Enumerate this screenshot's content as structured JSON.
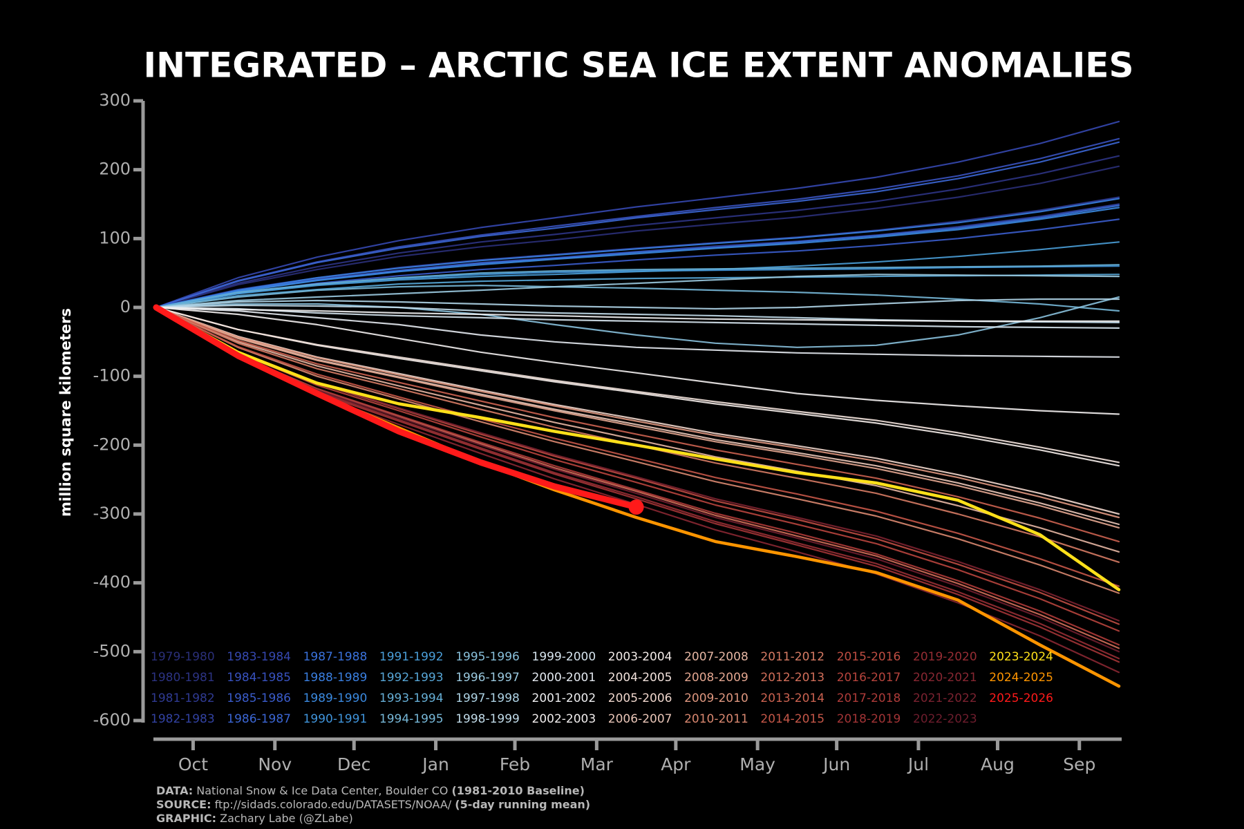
{
  "chart_data": {
    "type": "line",
    "title": "INTEGRATED – ARCTIC SEA ICE EXTENT ANOMALIES",
    "ylabel": "million square kilometers",
    "x": [
      0,
      31,
      61,
      92,
      123,
      151,
      182,
      212,
      243,
      273,
      304,
      335,
      365
    ],
    "xlim": [
      0,
      365
    ],
    "xticks": [
      {
        "value": 14,
        "label": "Oct"
      },
      {
        "value": 45,
        "label": "Nov"
      },
      {
        "value": 75,
        "label": "Dec"
      },
      {
        "value": 106,
        "label": "Jan"
      },
      {
        "value": 136,
        "label": "Feb"
      },
      {
        "value": 167,
        "label": "Mar"
      },
      {
        "value": 197,
        "label": "Apr"
      },
      {
        "value": 228,
        "label": "May"
      },
      {
        "value": 258,
        "label": "Jun"
      },
      {
        "value": 289,
        "label": "Jul"
      },
      {
        "value": 319,
        "label": "Aug"
      },
      {
        "value": 350,
        "label": "Sep"
      }
    ],
    "ylim": [
      -600,
      300
    ],
    "yticks": [
      -600,
      -500,
      -400,
      -300,
      -200,
      -100,
      0,
      100,
      200,
      300
    ],
    "series": [
      {
        "name": "1979-1980",
        "color": "#2a2f78",
        "values": [
          0,
          33,
          55,
          74,
          88,
          98,
          111,
          121,
          131,
          144,
          160,
          180,
          205
        ]
      },
      {
        "name": "1980-1981",
        "color": "#2c3383",
        "values": [
          0,
          35,
          59,
          79,
          95,
          106,
          119,
          130,
          141,
          154,
          172,
          194,
          220
        ]
      },
      {
        "name": "1981-1982",
        "color": "#2f3a92",
        "values": [
          0,
          26,
          43,
          58,
          69,
          77,
          86,
          94,
          102,
          112,
          125,
          141,
          160
        ]
      },
      {
        "name": "1982-1983",
        "color": "#3242a2",
        "values": [
          0,
          24,
          41,
          54,
          65,
          72,
          81,
          89,
          96,
          105,
          117,
          132,
          150
        ]
      },
      {
        "name": "1983-1984",
        "color": "#3548b0",
        "values": [
          0,
          43,
          73,
          97,
          116,
          130,
          146,
          159,
          173,
          189,
          211,
          238,
          270
        ]
      },
      {
        "name": "1984-1985",
        "color": "#3852bf",
        "values": [
          0,
          39,
          66,
          88,
          105,
          118,
          132,
          145,
          157,
          172,
          191,
          216,
          245
        ]
      },
      {
        "name": "1985-1986",
        "color": "#3a5ccb",
        "values": [
          0,
          20,
          35,
          46,
          55,
          61,
          69,
          76,
          82,
          90,
          100,
          113,
          128
        ]
      },
      {
        "name": "1986-1987",
        "color": "#3b66d4",
        "values": [
          0,
          38,
          65,
          86,
          103,
          115,
          130,
          142,
          154,
          168,
          187,
          211,
          240
        ]
      },
      {
        "name": "1987-1988",
        "color": "#3a72dc",
        "values": [
          0,
          24,
          40,
          53,
          64,
          71,
          80,
          87,
          95,
          104,
          115,
          130,
          148
        ]
      },
      {
        "name": "1988-1989",
        "color": "#3a7fe0",
        "values": [
          0,
          25,
          43,
          57,
          68,
          76,
          85,
          93,
          101,
          111,
          123,
          139,
          158
        ]
      },
      {
        "name": "1989-1990",
        "color": "#3b8ae0",
        "values": [
          0,
          23,
          39,
          52,
          62,
          70,
          78,
          86,
          93,
          102,
          113,
          128,
          145
        ]
      },
      {
        "name": "1990-1991",
        "color": "#4095dc",
        "values": [
          0,
          21,
          33,
          42,
          48,
          51,
          53,
          54,
          55,
          56,
          58,
          59,
          60
        ]
      },
      {
        "name": "1991-1992",
        "color": "#4a9ed8",
        "values": [
          0,
          20,
          32,
          40,
          45,
          48,
          52,
          55,
          60,
          66,
          74,
          84,
          95
        ]
      },
      {
        "name": "1992-1993",
        "color": "#57a6d6",
        "values": [
          0,
          17,
          26,
          34,
          38,
          40,
          42,
          43,
          44,
          45,
          46,
          47,
          48
        ]
      },
      {
        "name": "1993-1994",
        "color": "#66afd6",
        "values": [
          0,
          22,
          34,
          43,
          50,
          53,
          55,
          56,
          57,
          58,
          59,
          60,
          62
        ]
      },
      {
        "name": "1994-1995",
        "color": "#77b8d8",
        "values": [
          0,
          15,
          25,
          30,
          32,
          30,
          28,
          25,
          22,
          18,
          12,
          5,
          -5
        ]
      },
      {
        "name": "1995-1996",
        "color": "#88c0db",
        "values": [
          0,
          5,
          5,
          0,
          -10,
          -25,
          -40,
          -52,
          -58,
          -55,
          -40,
          -15,
          15
        ]
      },
      {
        "name": "1996-1997",
        "color": "#9ac9df",
        "values": [
          0,
          10,
          15,
          20,
          25,
          30,
          35,
          40,
          45,
          48,
          47,
          46,
          45
        ]
      },
      {
        "name": "1997-1998",
        "color": "#aed3e5",
        "values": [
          0,
          8,
          10,
          8,
          5,
          2,
          0,
          -2,
          0,
          5,
          10,
          12,
          12
        ]
      },
      {
        "name": "1998-1999",
        "color": "#c2dcea",
        "values": [
          0,
          3,
          2,
          0,
          -5,
          -8,
          -10,
          -12,
          -15,
          -18,
          -20,
          -21,
          -22
        ]
      },
      {
        "name": "1999-2000",
        "color": "#d6e4ee",
        "values": [
          0,
          -2,
          -8,
          -12,
          -15,
          -18,
          -20,
          -22,
          -24,
          -26,
          -28,
          -29,
          -30
        ]
      },
      {
        "name": "2000-2001",
        "color": "#e4e9f0",
        "values": [
          0,
          -5,
          -15,
          -25,
          -40,
          -50,
          -58,
          -62,
          -66,
          -68,
          -70,
          -71,
          -72
        ]
      },
      {
        "name": "2001-2002",
        "color": "#eeeef0",
        "values": [
          0,
          -3,
          -5,
          -8,
          -10,
          -12,
          -15,
          -17,
          -18,
          -19,
          -20,
          -20,
          -20
        ]
      },
      {
        "name": "2002-2003",
        "color": "#f2eeee",
        "values": [
          0,
          -10,
          -25,
          -45,
          -65,
          -80,
          -95,
          -110,
          -125,
          -135,
          -143,
          -150,
          -155
        ]
      },
      {
        "name": "2003-2004",
        "color": "#f3ebe8",
        "values": [
          0,
          -32,
          -55,
          -74,
          -92,
          -108,
          -124,
          -140,
          -154,
          -168,
          -186,
          -207,
          -230
        ]
      },
      {
        "name": "2004-2005",
        "color": "#f2e2dc",
        "values": [
          0,
          -32,
          -54,
          -72,
          -90,
          -106,
          -122,
          -137,
          -151,
          -164,
          -182,
          -203,
          -225
        ]
      },
      {
        "name": "2005-2006",
        "color": "#efd6cc",
        "values": [
          0,
          -42,
          -72,
          -96,
          -120,
          -141,
          -162,
          -183,
          -201,
          -219,
          -243,
          -270,
          -300
        ]
      },
      {
        "name": "2006-2007",
        "color": "#eac6b8",
        "values": [
          0,
          -44,
          -76,
          -101,
          -126,
          -148,
          -170,
          -192,
          -211,
          -230,
          -255,
          -284,
          -315
        ]
      },
      {
        "name": "2007-2008",
        "color": "#e6b6a3",
        "values": [
          0,
          -50,
          -85,
          -114,
          -142,
          -167,
          -192,
          -217,
          -238,
          -259,
          -288,
          -320,
          -355
        ]
      },
      {
        "name": "2008-2009",
        "color": "#e3a690",
        "values": [
          0,
          -45,
          -77,
          -102,
          -128,
          -150,
          -173,
          -195,
          -214,
          -234,
          -259,
          -288,
          -320
        ]
      },
      {
        "name": "2009-2010",
        "color": "#df977f",
        "values": [
          0,
          -43,
          -73,
          -98,
          -122,
          -143,
          -165,
          -186,
          -204,
          -223,
          -247,
          -275,
          -305
        ]
      },
      {
        "name": "2010-2011",
        "color": "#da8870",
        "values": [
          0,
          -58,
          -100,
          -133,
          -166,
          -195,
          -224,
          -253,
          -278,
          -303,
          -336,
          -374,
          -415
        ]
      },
      {
        "name": "2011-2012",
        "color": "#d67b64",
        "values": [
          0,
          -52,
          -89,
          -118,
          -148,
          -174,
          -200,
          -226,
          -248,
          -270,
          -300,
          -333,
          -370
        ]
      },
      {
        "name": "2012-2013",
        "color": "#d16e59",
        "values": [
          0,
          -69,
          -119,
          -158,
          -198,
          -233,
          -267,
          -302,
          -332,
          -361,
          -401,
          -446,
          -495
        ]
      },
      {
        "name": "2013-2014",
        "color": "#cb6250",
        "values": [
          0,
          -48,
          -82,
          -109,
          -136,
          -160,
          -184,
          -207,
          -228,
          -248,
          -275,
          -306,
          -340
        ]
      },
      {
        "name": "2014-2015",
        "color": "#c55748",
        "values": [
          0,
          -57,
          -97,
          -130,
          -162,
          -190,
          -219,
          -247,
          -271,
          -296,
          -328,
          -365,
          -405
        ]
      },
      {
        "name": "2015-2016",
        "color": "#bf4d42",
        "values": [
          0,
          -64,
          -110,
          -147,
          -184,
          -216,
          -248,
          -281,
          -308,
          -336,
          -373,
          -414,
          -460
        ]
      },
      {
        "name": "2016-2017",
        "color": "#b7443d",
        "values": [
          0,
          -66,
          -113,
          -150,
          -188,
          -221,
          -254,
          -287,
          -315,
          -343,
          -381,
          -423,
          -470
        ]
      },
      {
        "name": "2017-2018",
        "color": "#ae3b39",
        "values": [
          0,
          -69,
          -118,
          -157,
          -196,
          -230,
          -265,
          -299,
          -328,
          -358,
          -397,
          -441,
          -490
        ]
      },
      {
        "name": "2018-2019",
        "color": "#a33436",
        "values": [
          0,
          -72,
          -124,
          -165,
          -206,
          -242,
          -278,
          -314,
          -345,
          -376,
          -417,
          -464,
          -515
        ]
      },
      {
        "name": "2019-2020",
        "color": "#962d34",
        "values": [
          0,
          -71,
          -122,
          -163,
          -204,
          -240,
          -275,
          -311,
          -342,
          -372,
          -413,
          -459,
          -510
        ]
      },
      {
        "name": "2020-2021",
        "color": "#882732",
        "values": [
          0,
          -74,
          -127,
          -170,
          -212,
          -249,
          -286,
          -323,
          -355,
          -387,
          -429,
          -477,
          -530
        ]
      },
      {
        "name": "2021-2022",
        "color": "#7b2230",
        "values": [
          0,
          -64,
          -109,
          -146,
          -182,
          -214,
          -246,
          -278,
          -305,
          -332,
          -369,
          -410,
          -455
        ]
      },
      {
        "name": "2022-2023",
        "color": "#6e1d2d",
        "values": [
          0,
          -70,
          -120,
          -160,
          -200,
          -235,
          -270,
          -305,
          -335,
          -365,
          -405,
          -450,
          -500
        ]
      },
      {
        "name": "2023-2024",
        "color": "#ffe01a",
        "values": [
          0,
          -65,
          -110,
          -140,
          -160,
          -180,
          -200,
          -220,
          -240,
          -255,
          -280,
          -330,
          -410
        ]
      },
      {
        "name": "2024-2025",
        "color": "#ff9500",
        "values": [
          0,
          -70,
          -125,
          -175,
          -225,
          -265,
          -305,
          -340,
          -362,
          -385,
          -425,
          -490,
          -550
        ]
      },
      {
        "name": "2025-2026",
        "color": "#ff1a1a",
        "values": [
          0,
          -70,
          -125,
          -180,
          -225,
          -260,
          -290,
          null,
          null,
          null,
          null,
          null,
          null
        ]
      }
    ],
    "notes": [
      {
        "label": "DATA:",
        "text": "National Snow & Ice Data Center, Boulder CO",
        "note": "(1981-2010 Baseline)"
      },
      {
        "label": "SOURCE:",
        "text": "ftp://sidads.colorado.edu/DATASETS/NOAA/",
        "note": "(5-day running mean)"
      },
      {
        "label": "GRAPHIC:",
        "text": "Zachary Labe (@ZLabe)"
      }
    ]
  }
}
